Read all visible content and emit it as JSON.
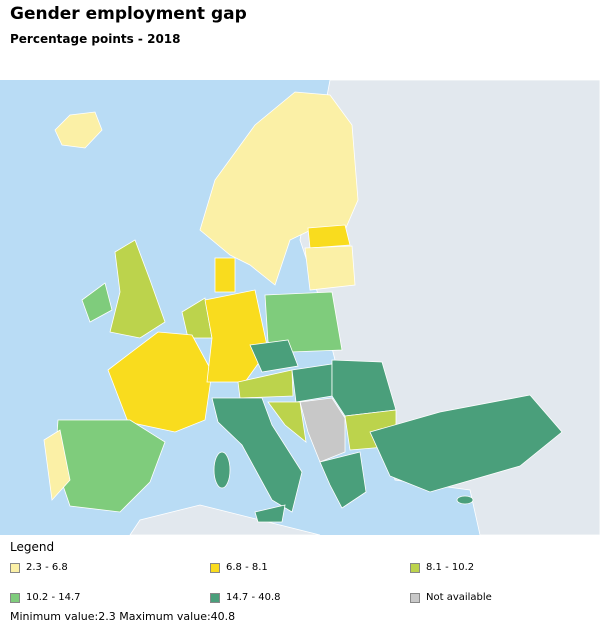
{
  "header": {
    "title": "Gender employment gap",
    "subtitle": "Percentage points - 2018"
  },
  "legend": {
    "title": "Legend",
    "items": [
      {
        "label": "2.3 - 6.8",
        "color": "#fbf0a6"
      },
      {
        "label": "6.8 - 8.1",
        "color": "#f9dc1e"
      },
      {
        "label": "8.1 - 10.2",
        "color": "#bcd34c"
      },
      {
        "label": "10.2 - 14.7",
        "color": "#7fcc7c"
      },
      {
        "label": "14.7 - 40.8",
        "color": "#4a9f7b"
      },
      {
        "label": "Not available",
        "color": "#c8c8c8"
      }
    ]
  },
  "footer": "Minimum value:2.3 Maximum value:40.8"
}
